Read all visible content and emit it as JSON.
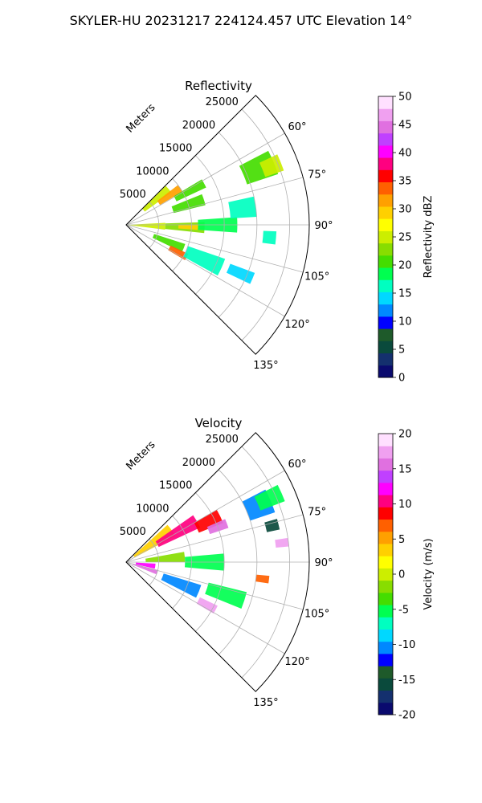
{
  "figure": {
    "title": "SKYLER-HU  20231217  224124.457 UTC Elevation 14°"
  },
  "chart_data": [
    {
      "type": "polar-sector",
      "title": "Reflectivity",
      "range_label": "Meters",
      "range_ticks": [
        "5000",
        "10000",
        "15000",
        "20000",
        "25000"
      ],
      "range_max": 28000,
      "azimuth_range": [
        45,
        135
      ],
      "azimuth_ticks": [
        "60°",
        "75°",
        "90°",
        "105°",
        "120°",
        "135°"
      ],
      "colorbar": {
        "label": "Reflectivity dBZ",
        "min": 0,
        "max": 50,
        "ticks": [
          "0",
          "5",
          "10",
          "15",
          "20",
          "25",
          "30",
          "35",
          "40",
          "45",
          "50"
        ],
        "stops": [
          "#0a0a6e",
          "#14306e",
          "#0a4a3c",
          "#1e5a2a",
          "#0000ff",
          "#0088ff",
          "#00d8ff",
          "#00ffc0",
          "#00ff50",
          "#44dd00",
          "#88dd00",
          "#ccee00",
          "#ffff00",
          "#ffd000",
          "#ffa000",
          "#ff6000",
          "#ff0000",
          "#ff0080",
          "#ff00ff",
          "#c040ff",
          "#e070e0",
          "#f0a0f0",
          "#ffe0ff"
        ]
      },
      "cells": [
        {
          "r": 3000,
          "az": 92,
          "dr": 6000,
          "daz": 10,
          "v": 25
        },
        {
          "r": 6000,
          "az": 50,
          "dr": 5000,
          "daz": 9,
          "v": 24
        },
        {
          "r": 8000,
          "az": 56,
          "dr": 4000,
          "daz": 7,
          "v": 32
        },
        {
          "r": 11000,
          "az": 62,
          "dr": 5000,
          "daz": 6,
          "v": 21
        },
        {
          "r": 10000,
          "az": 72,
          "dr": 5000,
          "daz": 8,
          "v": 20
        },
        {
          "r": 9000,
          "az": 92,
          "dr": 6000,
          "daz": 8,
          "v": 22
        },
        {
          "r": 9500,
          "az": 92,
          "dr": 3000,
          "daz": 4,
          "v": 30
        },
        {
          "r": 14000,
          "az": 90,
          "dr": 6000,
          "daz": 8,
          "v": 19
        },
        {
          "r": 7000,
          "az": 112,
          "dr": 5000,
          "daz": 8,
          "v": 20
        },
        {
          "r": 9000,
          "az": 118,
          "dr": 3000,
          "daz": 6,
          "v": 33
        },
        {
          "r": 13000,
          "az": 114,
          "dr": 6000,
          "daz": 10,
          "v": 16
        },
        {
          "r": 19000,
          "az": 113,
          "dr": 4000,
          "daz": 5,
          "v": 15
        },
        {
          "r": 22000,
          "az": 67,
          "dr": 5000,
          "daz": 9,
          "v": 21
        },
        {
          "r": 24000,
          "az": 68,
          "dr": 3000,
          "daz": 6,
          "v": 26
        },
        {
          "r": 18000,
          "az": 82,
          "dr": 4000,
          "daz": 9,
          "v": 17
        },
        {
          "r": 22000,
          "az": 95,
          "dr": 2000,
          "daz": 5,
          "v": 16
        }
      ]
    },
    {
      "type": "polar-sector",
      "title": "Velocity",
      "range_label": "Meters",
      "range_ticks": [
        "5000",
        "10000",
        "15000",
        "20000",
        "25000"
      ],
      "range_max": 28000,
      "azimuth_range": [
        45,
        135
      ],
      "azimuth_ticks": [
        "60°",
        "75°",
        "90°",
        "105°",
        "120°",
        "135°"
      ],
      "colorbar": {
        "label": "Velocity (m/s)",
        "min": -20,
        "max": 20,
        "ticks": [
          "-20",
          "-15",
          "-10",
          "-5",
          "0",
          "5",
          "10",
          "15",
          "20"
        ],
        "stops": [
          "#0a0a6e",
          "#14306e",
          "#0a4a3c",
          "#1e5a2a",
          "#0000ff",
          "#0088ff",
          "#00d8ff",
          "#00ffc0",
          "#00ff50",
          "#44dd00",
          "#88dd00",
          "#ccee00",
          "#ffff00",
          "#ffd000",
          "#ffa000",
          "#ff6000",
          "#ff0000",
          "#ff0080",
          "#ff00ff",
          "#c040ff",
          "#e070e0",
          "#f0a0f0",
          "#ffe0ff"
        ]
      },
      "cells": [
        {
          "r": 5000,
          "az": 55,
          "dr": 7000,
          "daz": 14,
          "v": 4
        },
        {
          "r": 9000,
          "az": 60,
          "dr": 7000,
          "daz": 10,
          "v": 10
        },
        {
          "r": 14000,
          "az": 64,
          "dr": 4000,
          "daz": 8,
          "v": 9
        },
        {
          "r": 15000,
          "az": 69,
          "dr": 3000,
          "daz": 5,
          "v": 16
        },
        {
          "r": 6000,
          "az": 85,
          "dr": 6000,
          "daz": 10,
          "v": -2
        },
        {
          "r": 12000,
          "az": 90,
          "dr": 6000,
          "daz": 10,
          "v": -6
        },
        {
          "r": 3000,
          "az": 98,
          "dr": 3000,
          "daz": 10,
          "v": 12
        },
        {
          "r": 3000,
          "az": 108,
          "dr": 4000,
          "daz": 8,
          "v": 16
        },
        {
          "r": 9000,
          "az": 112,
          "dr": 6000,
          "daz": 10,
          "v": -11
        },
        {
          "r": 14000,
          "az": 118,
          "dr": 3000,
          "daz": 5,
          "v": 17
        },
        {
          "r": 16000,
          "az": 108,
          "dr": 6000,
          "daz": 8,
          "v": -6
        },
        {
          "r": 22000,
          "az": 67,
          "dr": 4000,
          "daz": 9,
          "v": -11
        },
        {
          "r": 24000,
          "az": 66,
          "dr": 4000,
          "daz": 6,
          "v": -5
        },
        {
          "r": 23000,
          "az": 76,
          "dr": 2000,
          "daz": 4,
          "v": -15
        },
        {
          "r": 24000,
          "az": 83,
          "dr": 2000,
          "daz": 3,
          "v": 17
        },
        {
          "r": 21000,
          "az": 97,
          "dr": 2000,
          "daz": 3,
          "v": 7
        }
      ]
    }
  ]
}
